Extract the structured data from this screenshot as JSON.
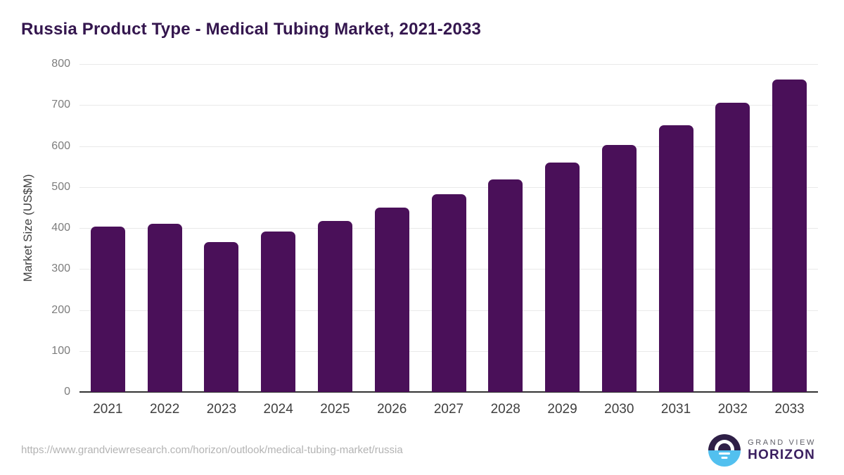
{
  "header": {
    "title": "Russia Product Type - Medical Tubing Market, 2021-2033"
  },
  "chart_data": {
    "type": "bar",
    "title": "Russia Product Type - Medical Tubing Market, 2021-2033",
    "categories": [
      "2021",
      "2022",
      "2023",
      "2024",
      "2025",
      "2026",
      "2027",
      "2028",
      "2029",
      "2030",
      "2031",
      "2032",
      "2033"
    ],
    "values": [
      403,
      411,
      366,
      391,
      418,
      450,
      482,
      519,
      559,
      603,
      651,
      705,
      763
    ],
    "xlabel": "",
    "ylabel": "Market Size (US$M)",
    "ylim": [
      0,
      800
    ],
    "ytick_step": 100,
    "grid": true,
    "legend": "none",
    "bar_color": "#4a1059"
  },
  "colors": {
    "title": "#34164e",
    "bar": "#4a1059",
    "axis_line": "#333333",
    "gridline": "#e9e9e9",
    "y_tick_label": "#7d7d7d",
    "x_tick_label": "#3f3f3f",
    "source_url": "#b3b3b3",
    "logo_purple": "#2e1f47",
    "logo_blue": "#52c0ef"
  },
  "footer": {
    "source_url": "https://www.grandviewresearch.com/horizon/outlook/medical-tubing-market/russia",
    "logo": {
      "line1": "GRAND VIEW",
      "line2": "HORIZON"
    }
  }
}
